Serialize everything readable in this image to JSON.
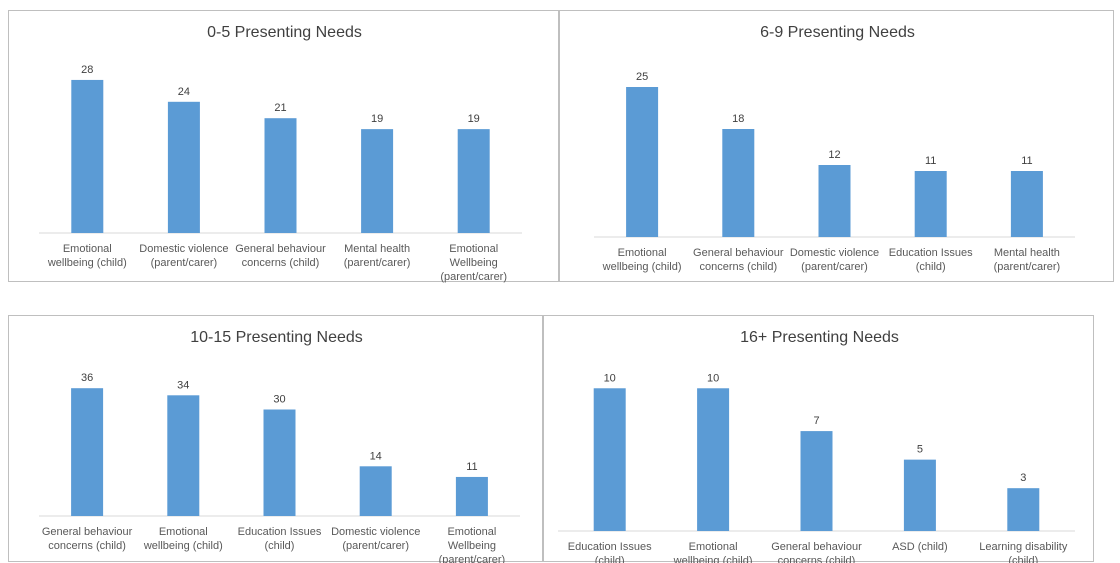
{
  "chart_data": [
    {
      "type": "bar",
      "title": "0-5 Presenting Needs",
      "categories": [
        [
          "Emotional",
          "wellbeing (child)"
        ],
        [
          "Domestic violence",
          "(parent/carer)"
        ],
        [
          "General behaviour",
          "concerns (child)"
        ],
        [
          "Mental health",
          "(parent/carer)"
        ],
        [
          "Emotional",
          "Wellbeing",
          "(parent/carer)"
        ]
      ],
      "values": [
        28,
        24,
        21,
        19,
        19
      ],
      "ylim": [
        0,
        30
      ],
      "color": "#5b9bd5"
    },
    {
      "type": "bar",
      "title": "6-9 Presenting Needs",
      "categories": [
        [
          "Emotional",
          "wellbeing (child)"
        ],
        [
          "General behaviour",
          "concerns (child)"
        ],
        [
          "Domestic violence",
          "(parent/carer)"
        ],
        [
          "Education Issues",
          "(child)"
        ],
        [
          "Mental health",
          "(parent/carer)"
        ]
      ],
      "values": [
        25,
        18,
        12,
        11,
        11
      ],
      "ylim": [
        0,
        28
      ],
      "color": "#5b9bd5"
    },
    {
      "type": "bar",
      "title": "10-15 Presenting Needs",
      "categories": [
        [
          "General behaviour",
          "concerns (child)"
        ],
        [
          "Emotional",
          "wellbeing (child)"
        ],
        [
          "Education Issues",
          "(child)"
        ],
        [
          "Domestic violence",
          "(parent/carer)"
        ],
        [
          "Emotional",
          "Wellbeing",
          "(parent/carer)"
        ]
      ],
      "values": [
        36,
        34,
        30,
        14,
        11
      ],
      "ylim": [
        0,
        40
      ],
      "color": "#5b9bd5"
    },
    {
      "type": "bar",
      "title": "16+ Presenting Needs",
      "categories": [
        [
          "Education Issues",
          "(child)"
        ],
        [
          "Emotional",
          "wellbeing (child)"
        ],
        [
          "General behaviour",
          "concerns (child)"
        ],
        [
          "ASD (child)"
        ],
        [
          "Learning disability",
          "(child)"
        ]
      ],
      "values": [
        10,
        10,
        7,
        5,
        3
      ],
      "ylim": [
        0,
        11
      ],
      "color": "#5b9bd5"
    }
  ]
}
